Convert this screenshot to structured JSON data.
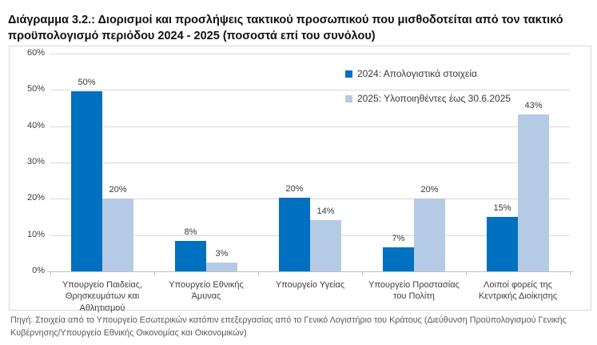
{
  "title": "Διάγραμμα 3.2.: Διορισμοί και προσλήψεις τακτικού προσωπικού που μισθοδοτείται από τον τακτικό προϋπολογισμό περιόδου 2024 - 2025 (ποσοστά επί του συνόλου)",
  "footer": "Πηγή: Στοιχεία από το Υπουργείο Εσωτερικών κατόπιν επεξεργασίας από το Γενικό Λογιστήριο του Κράτους (Διεύθυνση Προϋπολογισμού Γενικής Κυβέρνησης/Υπουργείο Εθνικής Οικονομίας και Οικονομικών)",
  "colors": {
    "series_2024": "#0070c0",
    "series_2025": "#b5cbe5",
    "gridline": "#d9d9d9",
    "axis": "#bfbfbf",
    "label_text": "#404040",
    "footer_text": "#595959"
  },
  "chart_data": {
    "type": "bar",
    "categories": [
      "Υπουργείο Παιδείας, Θρησκευμάτων και Αθλητισμού",
      "Υπουργείο Εθνικής Άμυνας",
      "Υπουργείο Υγείας",
      "Υπουργείο Προστασίας του Πολίτη",
      "Λοιποί φορείς της Κεντρικής Διοίκησης"
    ],
    "series": [
      {
        "name": "2024: Απολογιστικά στοιχεία",
        "color": "#0070c0",
        "values": [
          50,
          8,
          20,
          7,
          15
        ],
        "labels": [
          "50%",
          "8%",
          "20%",
          "7%",
          "15%"
        ],
        "display_heights": [
          49.7,
          8.3,
          20.4,
          6.7,
          15.0
        ]
      },
      {
        "name": "2025: Υλοποιηθέντες έως 30.6.2025",
        "color": "#b5cbe5",
        "values": [
          20,
          3,
          14,
          20,
          43
        ],
        "labels": [
          "20%",
          "3%",
          "14%",
          "20%",
          "43%"
        ],
        "display_heights": [
          20.0,
          2.5,
          14.2,
          20.0,
          43.3
        ]
      }
    ],
    "title": "",
    "xlabel": "",
    "ylabel": "",
    "ylim": [
      0,
      60
    ],
    "yticks": [
      "0%",
      "10%",
      "20%",
      "30%",
      "40%",
      "50%",
      "60%"
    ],
    "grid": "horizontal",
    "legend_position": "top-right-inside"
  }
}
